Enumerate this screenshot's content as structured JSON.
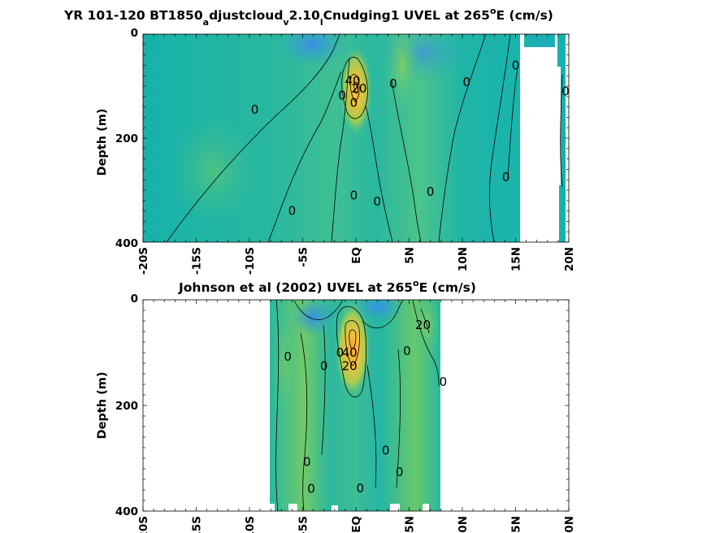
{
  "chart_data": [
    {
      "type": "heatmap",
      "title_parts": [
        "YR 101-120 BT1850",
        "a",
        "djustcloud",
        "v",
        "2.10",
        "l",
        "Cnudging1 UVEL at 265",
        "o",
        "E (cm/s)"
      ],
      "ylabel": "Depth (m)",
      "x_ticks": [
        "-20S",
        "-15S",
        "-10S",
        "-5S",
        "EQ",
        "5N",
        "10N",
        "15N",
        "20N"
      ],
      "x_values": [
        -20,
        -15,
        -10,
        -5,
        0,
        5,
        10,
        15,
        20
      ],
      "y_ticks": [
        "0",
        "200",
        "400"
      ],
      "y_values": [
        0,
        200,
        400
      ],
      "xlim": [
        -20,
        20
      ],
      "ylim": [
        0,
        400
      ],
      "colors": {
        "core": "#f5c542",
        "mid": "#7fc96b",
        "background": "#1fb8a8",
        "negative": "#3a8ee6"
      },
      "contour_labels": [
        {
          "text": "0",
          "x": -9.5,
          "y": 145
        },
        {
          "text": "0",
          "x": -1.3,
          "y": 118
        },
        {
          "text": "0",
          "x": 3.5,
          "y": 95
        },
        {
          "text": "0",
          "x": 10.4,
          "y": 92
        },
        {
          "text": "0",
          "x": 15,
          "y": 60
        },
        {
          "text": "0",
          "x": 19.7,
          "y": 110
        },
        {
          "text": "0",
          "x": 14.1,
          "y": 275
        },
        {
          "text": "0",
          "x": -0.2,
          "y": 310
        },
        {
          "text": "0",
          "x": 2,
          "y": 322
        },
        {
          "text": "0",
          "x": 7,
          "y": 303
        },
        {
          "text": "0",
          "x": -6,
          "y": 340
        },
        {
          "text": "20",
          "x": 0.3,
          "y": 105
        },
        {
          "text": "40",
          "x": -0.3,
          "y": 90
        },
        {
          "text": "0",
          "x": -0.2,
          "y": 132
        }
      ]
    },
    {
      "type": "heatmap",
      "title_parts": [
        "Johnson et al (2002) UVEL at 265",
        "o",
        "E (cm/s)"
      ],
      "ylabel": "Depth (m)",
      "x_ticks": [
        "-20S",
        "-15S",
        "-10S",
        "-5S",
        "EQ",
        "5N",
        "10N",
        "15N",
        "20N"
      ],
      "x_values": [
        -20,
        -15,
        -10,
        -5,
        0,
        5,
        10,
        15,
        20
      ],
      "y_ticks": [
        "0",
        "200",
        "400"
      ],
      "y_values": [
        0,
        200,
        400
      ],
      "xlim": [
        -20,
        20
      ],
      "ylim": [
        0,
        400
      ],
      "data_extent_x": [
        -8,
        8
      ],
      "colors": {
        "core": "#f5c542",
        "mid": "#7fc96b",
        "background": "#1fb8a8",
        "negative": "#3a8ee6"
      },
      "contour_labels": [
        {
          "text": "0",
          "x": -6.4,
          "y": 108
        },
        {
          "text": "0",
          "x": -3,
          "y": 125
        },
        {
          "text": "0",
          "x": -1.5,
          "y": 100
        },
        {
          "text": "40",
          "x": -0.6,
          "y": 100
        },
        {
          "text": "20",
          "x": -0.6,
          "y": 125
        },
        {
          "text": "0",
          "x": 4.8,
          "y": 97
        },
        {
          "text": "20",
          "x": 6.3,
          "y": 48
        },
        {
          "text": "0",
          "x": 8.2,
          "y": 155
        },
        {
          "text": "0",
          "x": -4.6,
          "y": 307
        },
        {
          "text": "0",
          "x": 2.8,
          "y": 285
        },
        {
          "text": "0",
          "x": 4.1,
          "y": 326
        },
        {
          "text": "0",
          "x": -4.2,
          "y": 358
        },
        {
          "text": "0",
          "x": 0.4,
          "y": 357
        }
      ]
    }
  ]
}
